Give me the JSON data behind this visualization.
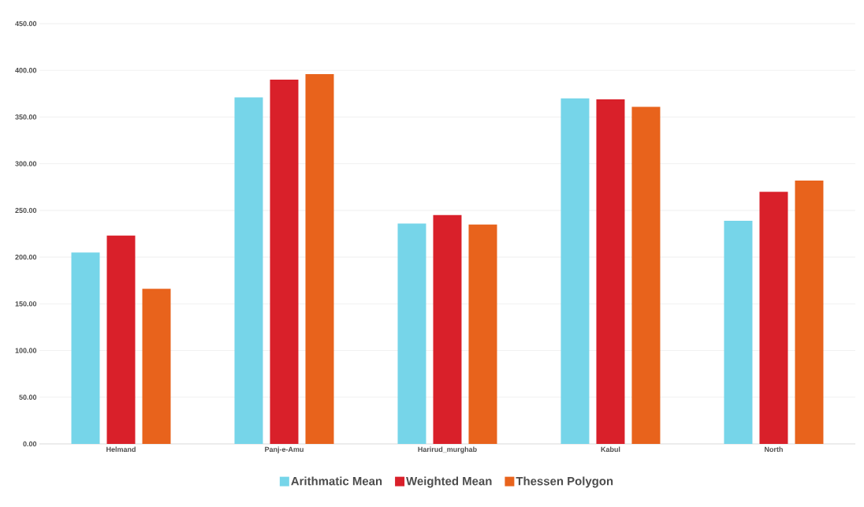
{
  "chart_data": {
    "type": "bar",
    "categories": [
      "Helmand",
      "Panj-e-Amu",
      "Harirud_murghab",
      "Kabul",
      "North"
    ],
    "series": [
      {
        "name": "Arithmatic Mean",
        "color": "#76d5e9",
        "values": [
          205,
          371,
          236,
          370,
          239
        ]
      },
      {
        "name": "Weighted Mean",
        "color": "#d9202a",
        "values": [
          223,
          390,
          245,
          369,
          270
        ]
      },
      {
        "name": "Thessen Polygon",
        "color": "#e8631c",
        "values": [
          166,
          396,
          235,
          361,
          282
        ]
      }
    ],
    "ylim": [
      0,
      450
    ],
    "yticks": [
      {
        "value": 0,
        "label": "0.00"
      },
      {
        "value": 50,
        "label": "50.00"
      },
      {
        "value": 100,
        "label": "100.00"
      },
      {
        "value": 150,
        "label": "150.00"
      },
      {
        "value": 200,
        "label": "200.00"
      },
      {
        "value": 250,
        "label": "250.00"
      },
      {
        "value": 300,
        "label": "300.00"
      },
      {
        "value": 350,
        "label": "350.00"
      },
      {
        "value": 400,
        "label": "400.00"
      },
      {
        "value": 450,
        "label": "450.00"
      }
    ],
    "grid": "y",
    "legend": "bottom"
  }
}
